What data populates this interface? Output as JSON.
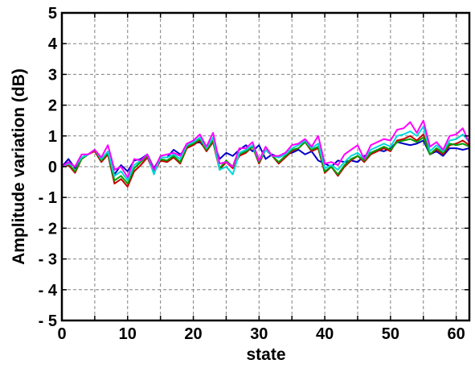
{
  "chart_data": {
    "type": "line",
    "xlabel": "state",
    "ylabel": "Amplitude variation (dB)",
    "xlim": [
      0,
      62
    ],
    "ylim": [
      -5,
      5
    ],
    "xticks": [
      0,
      10,
      20,
      30,
      40,
      50,
      60
    ],
    "yticks": [
      5,
      4,
      3,
      2,
      1,
      0,
      -1,
      -2,
      -3,
      -4,
      -5
    ],
    "xtick_labels": [
      "0",
      "10",
      "20",
      "30",
      "40",
      "50",
      "60"
    ],
    "ytick_labels": [
      "5",
      "4",
      "3",
      "2",
      "1",
      "0",
      "- 1",
      "- 2",
      "- 3",
      "- 4",
      "- 5"
    ],
    "grid": true,
    "legend": "none",
    "x": [
      0,
      1,
      2,
      3,
      4,
      5,
      6,
      7,
      8,
      9,
      10,
      11,
      12,
      13,
      14,
      15,
      16,
      17,
      18,
      19,
      20,
      21,
      22,
      23,
      24,
      25,
      26,
      27,
      28,
      29,
      30,
      31,
      32,
      33,
      34,
      35,
      36,
      37,
      38,
      39,
      40,
      41,
      42,
      43,
      44,
      45,
      46,
      47,
      48,
      49,
      50,
      51,
      52,
      53,
      54,
      55,
      56,
      57,
      58,
      59,
      60,
      61,
      62
    ],
    "series": [
      {
        "color": "#0000c8",
        "values": [
          0.0,
          0.25,
          -0.05,
          0.3,
          0.4,
          0.55,
          0.25,
          0.45,
          -0.25,
          0.05,
          -0.15,
          0.2,
          0.25,
          0.4,
          -0.05,
          0.3,
          0.3,
          0.55,
          0.4,
          0.6,
          0.75,
          0.8,
          0.55,
          0.85,
          0.25,
          0.45,
          0.35,
          0.55,
          0.7,
          0.5,
          0.7,
          0.25,
          0.4,
          0.3,
          0.4,
          0.45,
          0.55,
          0.4,
          0.5,
          0.2,
          0.1,
          0.0,
          0.2,
          0.15,
          0.2,
          0.15,
          0.35,
          0.45,
          0.55,
          0.5,
          0.6,
          0.8,
          0.75,
          0.7,
          0.75,
          0.85,
          0.4,
          0.5,
          0.35,
          0.6,
          0.6,
          0.55,
          0.6
        ]
      },
      {
        "color": "#c80000",
        "values": [
          0.0,
          0.05,
          -0.2,
          0.25,
          0.4,
          0.5,
          0.15,
          0.4,
          -0.55,
          -0.4,
          -0.65,
          -0.15,
          0.05,
          0.3,
          -0.2,
          0.2,
          0.15,
          0.3,
          0.1,
          0.6,
          0.7,
          0.85,
          0.5,
          0.8,
          -0.1,
          0.15,
          -0.05,
          0.35,
          0.45,
          0.65,
          0.1,
          0.55,
          0.35,
          0.1,
          0.3,
          0.5,
          0.6,
          0.8,
          0.5,
          0.6,
          -0.2,
          0.0,
          -0.3,
          0.0,
          0.2,
          0.35,
          0.15,
          0.4,
          0.5,
          0.6,
          0.5,
          0.85,
          0.9,
          1.0,
          0.85,
          1.05,
          0.4,
          0.55,
          0.4,
          0.7,
          0.75,
          0.85,
          0.7
        ]
      },
      {
        "color": "#00a000",
        "values": [
          0.0,
          0.1,
          -0.15,
          0.25,
          0.4,
          0.55,
          0.2,
          0.45,
          -0.45,
          -0.3,
          -0.55,
          -0.05,
          0.15,
          0.35,
          -0.15,
          0.25,
          0.2,
          0.35,
          0.15,
          0.65,
          0.75,
          0.9,
          0.55,
          0.85,
          -0.05,
          0.2,
          0.0,
          0.4,
          0.5,
          0.65,
          0.15,
          0.55,
          0.35,
          0.15,
          0.35,
          0.55,
          0.6,
          0.8,
          0.55,
          0.65,
          -0.15,
          0.0,
          -0.25,
          0.05,
          0.25,
          0.35,
          0.2,
          0.45,
          0.55,
          0.65,
          0.55,
          0.8,
          0.85,
          0.9,
          0.8,
          0.95,
          0.4,
          0.6,
          0.45,
          0.75,
          0.7,
          0.75,
          0.65
        ]
      },
      {
        "color": "#00d8d8",
        "values": [
          0.0,
          0.1,
          0.0,
          0.3,
          0.4,
          0.55,
          0.25,
          0.5,
          -0.3,
          -0.15,
          -0.45,
          0.05,
          0.2,
          0.4,
          -0.25,
          0.3,
          0.3,
          0.4,
          0.25,
          0.7,
          0.8,
          0.95,
          0.6,
          0.95,
          -0.1,
          0.0,
          -0.25,
          0.45,
          0.55,
          0.7,
          0.2,
          0.55,
          0.35,
          0.3,
          0.4,
          0.6,
          0.7,
          0.85,
          0.6,
          0.75,
          -0.05,
          0.05,
          -0.1,
          0.15,
          0.35,
          0.45,
          0.25,
          0.55,
          0.65,
          0.75,
          0.65,
          1.0,
          1.05,
          1.15,
          1.0,
          1.3,
          0.5,
          0.7,
          0.5,
          0.85,
          0.9,
          1.05,
          0.8
        ]
      },
      {
        "color": "#ff00ff",
        "values": [
          0.0,
          0.15,
          0.0,
          0.4,
          0.4,
          0.55,
          0.3,
          0.7,
          -0.1,
          0.0,
          -0.35,
          0.25,
          0.2,
          0.4,
          -0.1,
          0.35,
          0.4,
          0.45,
          0.35,
          0.75,
          0.85,
          1.05,
          0.65,
          1.1,
          0.1,
          0.15,
          0.0,
          0.6,
          0.6,
          0.8,
          0.2,
          0.65,
          0.35,
          0.35,
          0.45,
          0.7,
          0.75,
          0.9,
          0.65,
          1.0,
          0.1,
          0.15,
          0.05,
          0.4,
          0.55,
          0.7,
          0.25,
          0.7,
          0.8,
          0.9,
          0.85,
          1.2,
          1.25,
          1.45,
          1.1,
          1.5,
          0.65,
          0.8,
          0.55,
          1.0,
          1.05,
          1.25,
          0.75
        ]
      }
    ]
  }
}
